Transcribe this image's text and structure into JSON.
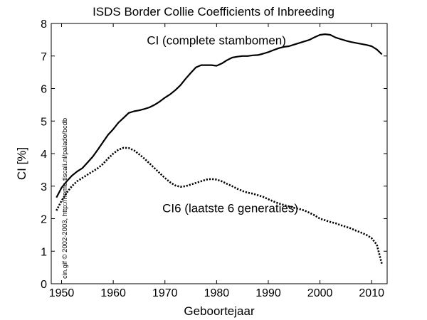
{
  "chart_data": {
    "type": "line",
    "title": "ISDS Border Collie Coefficients of Inbreeding",
    "xlabel": "Geboortejaar",
    "ylabel": "CI [%]",
    "xlim": [
      1948,
      2013
    ],
    "ylim": [
      0,
      8
    ],
    "xticks": [
      1950,
      1960,
      1970,
      1980,
      1990,
      2000,
      2010
    ],
    "yticks": [
      0,
      1,
      2,
      3,
      4,
      5,
      6,
      7,
      8
    ],
    "grid": false,
    "legend": "none",
    "watermark": "cin.gif © 2002-2003, http://home.tiscali.nl/palado/bcdb",
    "series": [
      {
        "name": "CI (complete stambomen)",
        "style": "solid",
        "color": "#000000",
        "x": [
          1949,
          1950,
          1951,
          1952,
          1953,
          1954,
          1955,
          1956,
          1957,
          1958,
          1959,
          1960,
          1961,
          1962,
          1963,
          1964,
          1965,
          1966,
          1967,
          1968,
          1969,
          1970,
          1971,
          1972,
          1973,
          1974,
          1975,
          1976,
          1977,
          1978,
          1979,
          1980,
          1981,
          1982,
          1983,
          1984,
          1985,
          1986,
          1987,
          1988,
          1989,
          1990,
          1991,
          1992,
          1993,
          1994,
          1995,
          1996,
          1997,
          1998,
          1999,
          2000,
          2001,
          2002,
          2003,
          2004,
          2005,
          2006,
          2007,
          2008,
          2009,
          2010,
          2011,
          2012
        ],
        "y": [
          2.65,
          2.95,
          3.15,
          3.32,
          3.45,
          3.55,
          3.72,
          3.9,
          4.12,
          4.35,
          4.58,
          4.75,
          4.95,
          5.1,
          5.25,
          5.3,
          5.33,
          5.37,
          5.42,
          5.5,
          5.6,
          5.72,
          5.82,
          5.95,
          6.1,
          6.3,
          6.48,
          6.65,
          6.72,
          6.72,
          6.72,
          6.7,
          6.77,
          6.87,
          6.95,
          6.98,
          7.0,
          7.0,
          7.02,
          7.03,
          7.07,
          7.12,
          7.18,
          7.24,
          7.28,
          7.3,
          7.35,
          7.4,
          7.45,
          7.5,
          7.58,
          7.65,
          7.67,
          7.65,
          7.57,
          7.52,
          7.47,
          7.43,
          7.4,
          7.37,
          7.34,
          7.3,
          7.2,
          7.05
        ]
      },
      {
        "name": "CI6 (laatste 6 generaties)",
        "style": "dotted",
        "color": "#000000",
        "x": [
          1949,
          1950,
          1951,
          1952,
          1953,
          1954,
          1955,
          1956,
          1957,
          1958,
          1959,
          1960,
          1961,
          1962,
          1963,
          1964,
          1965,
          1966,
          1967,
          1968,
          1969,
          1970,
          1971,
          1972,
          1973,
          1974,
          1975,
          1976,
          1977,
          1978,
          1979,
          1980,
          1981,
          1982,
          1983,
          1984,
          1985,
          1986,
          1987,
          1988,
          1989,
          1990,
          1991,
          1992,
          1993,
          1994,
          1995,
          1996,
          1997,
          1998,
          1999,
          2000,
          2001,
          2002,
          2003,
          2004,
          2005,
          2006,
          2007,
          2008,
          2009,
          2010,
          2011,
          2012
        ],
        "y": [
          2.25,
          2.55,
          2.8,
          3.0,
          3.15,
          3.25,
          3.35,
          3.45,
          3.55,
          3.68,
          3.85,
          4.0,
          4.12,
          4.18,
          4.17,
          4.1,
          3.98,
          3.85,
          3.7,
          3.55,
          3.4,
          3.25,
          3.12,
          3.02,
          2.98,
          3.0,
          3.05,
          3.1,
          3.15,
          3.2,
          3.22,
          3.2,
          3.15,
          3.07,
          3.0,
          2.92,
          2.85,
          2.8,
          2.77,
          2.72,
          2.67,
          2.6,
          2.53,
          2.47,
          2.42,
          2.38,
          2.33,
          2.3,
          2.25,
          2.18,
          2.1,
          2.0,
          1.95,
          1.9,
          1.86,
          1.8,
          1.75,
          1.7,
          1.63,
          1.57,
          1.5,
          1.4,
          1.2,
          0.6
        ]
      }
    ],
    "annotations": [
      {
        "text": "CI (complete stambomen)",
        "x": 1966.5,
        "y": 7.35
      },
      {
        "text": "CI6 (laatste 6 generaties)",
        "x": 1969.5,
        "y": 2.2
      }
    ]
  }
}
